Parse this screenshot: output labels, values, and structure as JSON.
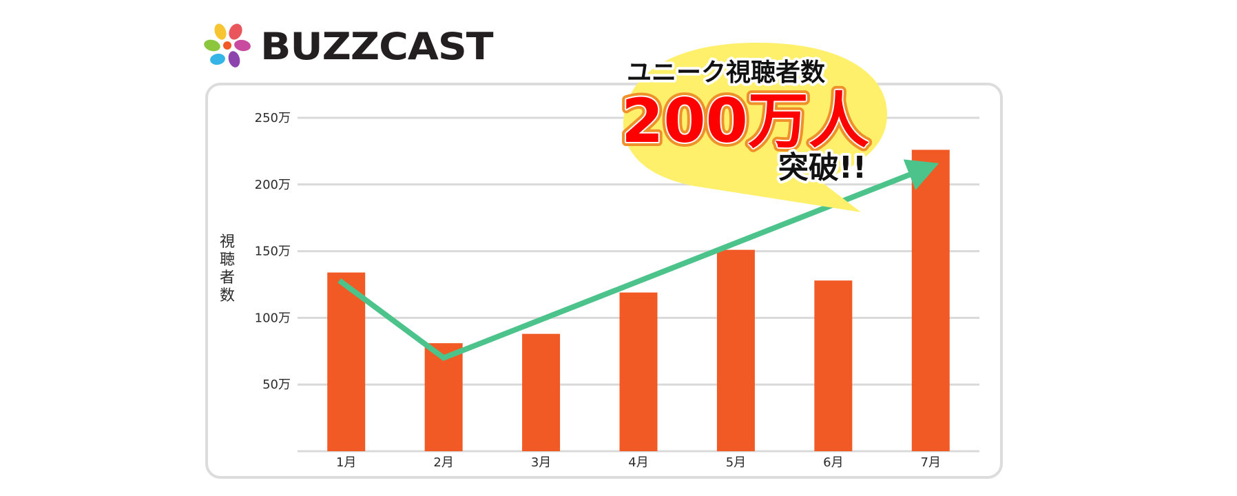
{
  "logo": {
    "text": "BUZZCAST"
  },
  "callout": {
    "line1": "ユニーク視聴者数",
    "line2": "200万人",
    "line3": "突破!!"
  },
  "colors": {
    "bar": "#f15a24",
    "arrow": "#4cc38a",
    "grid": "#d9d9d9",
    "bubble": "#fff06b",
    "frame": "#dcdcdc"
  },
  "chart_data": {
    "type": "bar",
    "ylabel": "視聴者数",
    "xlabel": "",
    "categories": [
      "1月",
      "2月",
      "3月",
      "4月",
      "5月",
      "6月",
      "7月"
    ],
    "values": [
      134,
      81,
      88,
      119,
      151,
      128,
      226
    ],
    "unit": "万",
    "ylim": [
      0,
      250
    ],
    "yticks": [
      {
        "value": 50,
        "label": "50万"
      },
      {
        "value": 100,
        "label": "100万"
      },
      {
        "value": 150,
        "label": "150万"
      },
      {
        "value": 200,
        "label": "200万"
      },
      {
        "value": 250,
        "label": "250万"
      }
    ],
    "grid": true,
    "trend_arrow": {
      "path_values": [
        128,
        70,
        216
      ]
    }
  }
}
